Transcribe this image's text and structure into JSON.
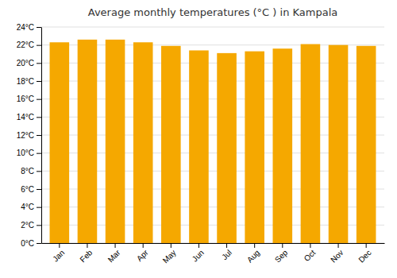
{
  "chart_data": {
    "type": "bar",
    "title": "Average monthly temperatures (°C ) in Kampala",
    "categories": [
      "Jan",
      "Feb",
      "Mar",
      "Apr",
      "May",
      "Jun",
      "Jul",
      "Aug",
      "Sep",
      "Oct",
      "Nov",
      "Dec"
    ],
    "values": [
      22.3,
      22.6,
      22.6,
      22.3,
      21.9,
      21.4,
      21.1,
      21.3,
      21.6,
      22.1,
      22.0,
      21.9
    ],
    "color": "#F5A800",
    "ylim": [
      0,
      24
    ],
    "yticks": [
      {
        "value": 0,
        "label": "0°C"
      },
      {
        "value": 2,
        "label": "2°C"
      },
      {
        "value": 4,
        "label": "4°C"
      },
      {
        "value": 6,
        "label": "6°C"
      },
      {
        "value": 8,
        "label": "8°C"
      },
      {
        "value": 10,
        "label": "10°C"
      },
      {
        "value": 12,
        "label": "12°C"
      },
      {
        "value": 14,
        "label": "14°C"
      },
      {
        "value": 16,
        "label": "16°C"
      },
      {
        "value": 18,
        "label": "18°C"
      },
      {
        "value": 20,
        "label": "20°C"
      },
      {
        "value": 22,
        "label": "22°C"
      },
      {
        "value": 24,
        "label": "24°C"
      }
    ],
    "grid": true
  }
}
